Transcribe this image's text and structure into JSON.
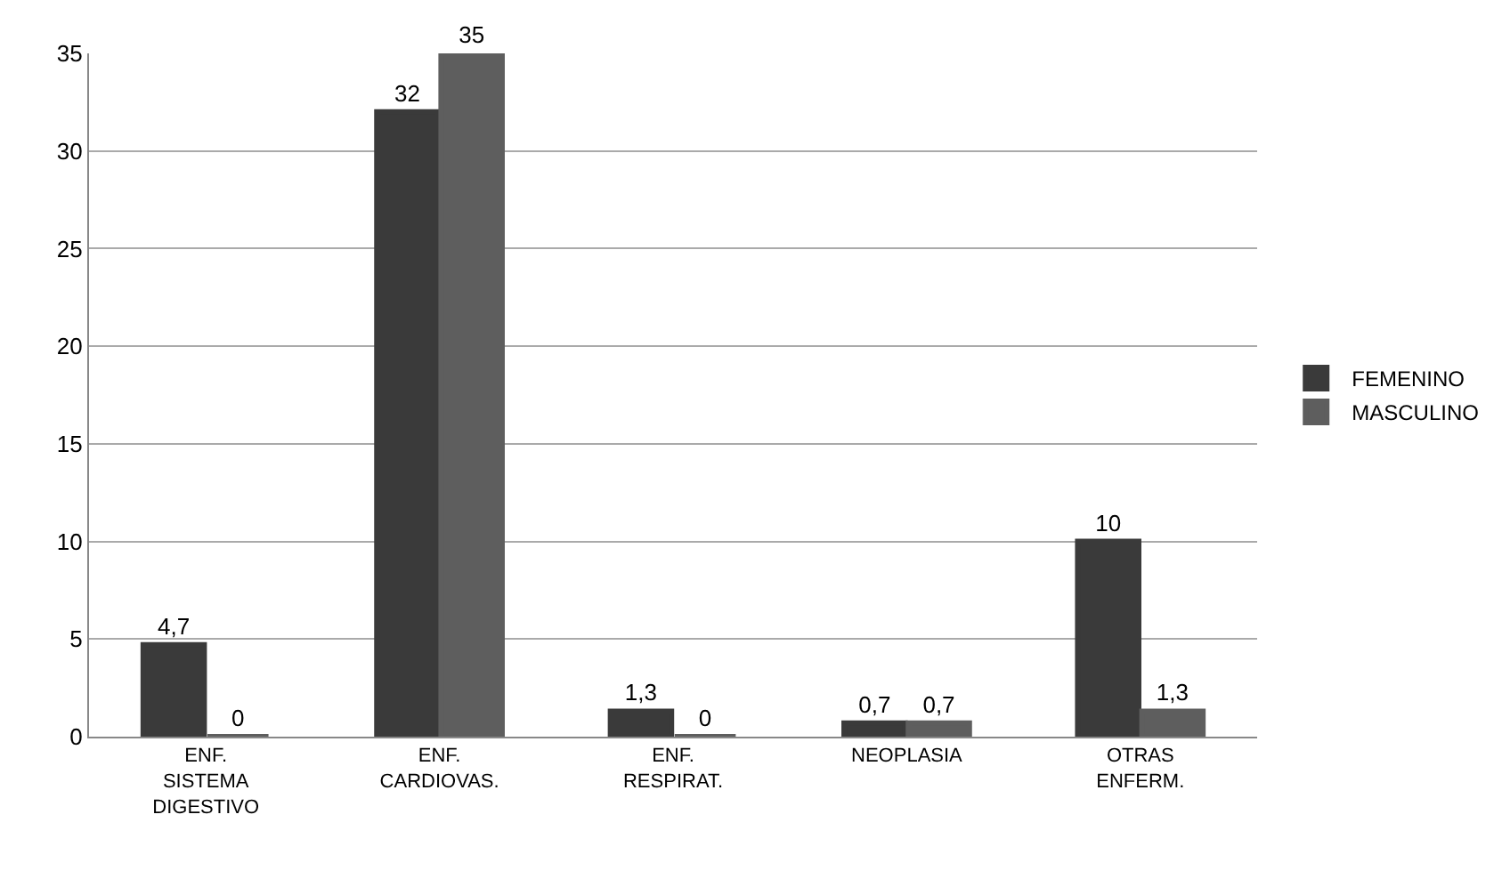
{
  "chart_data": {
    "type": "bar",
    "categories": [
      "ENF.\nSISTEMA\nDIGESTIVO",
      "ENF.\nCARDIOVAS.",
      "ENF.\nRESPIRAT.",
      "NEOPLASIA",
      "OTRAS\nENFERM."
    ],
    "series": [
      {
        "name": "FEMENINO",
        "color": "#3a3a3a",
        "values": [
          4.7,
          32,
          1.3,
          0.7,
          10
        ],
        "value_labels": [
          "4,7",
          "32",
          "1,3",
          "0,7",
          "10"
        ]
      },
      {
        "name": "MASCULINO",
        "color": "#5e5e5e",
        "values": [
          0,
          35,
          0,
          0.7,
          1.3
        ],
        "value_labels": [
          "0",
          "35",
          "0",
          "0,7",
          "1,3"
        ]
      }
    ],
    "ylim": [
      0,
      35
    ],
    "yticks": [
      0,
      5,
      10,
      15,
      20,
      25,
      30,
      35
    ],
    "grid": "y",
    "legend": "right"
  }
}
